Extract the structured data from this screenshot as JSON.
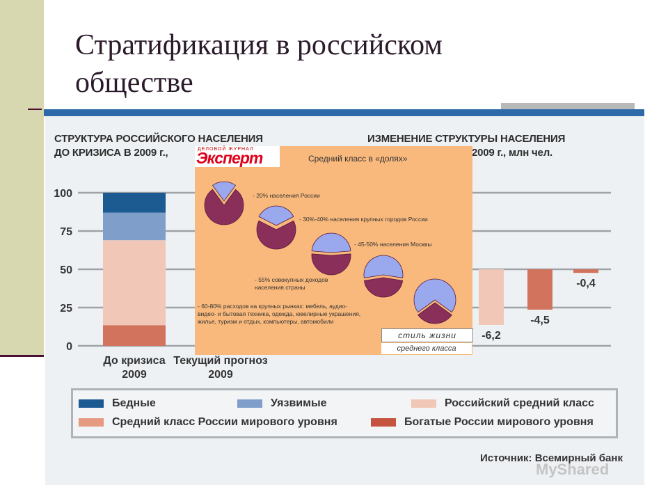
{
  "slide": {
    "title": "Стратификация в российском обществе"
  },
  "chart_left_heading": [
    "СТРУКТУРА РОССИЙСКОГО НАСЕЛЕНИЯ",
    "ДО КРИЗИСА В 2009 г.,"
  ],
  "chart_right_heading": [
    "ИЗМЕНЕНИЕ СТРУКТУРЫ НАСЕЛЕНИЯ",
    "2009 г., млн чел."
  ],
  "chart_data": [
    {
      "type": "bar",
      "stacked": true,
      "title": "СТРУКТУРА РОССИЙСКОГО НАСЕЛЕНИЯ ДО КРИЗИСА В 2009 г.,",
      "categories": [
        "До кризиса\n2009",
        "Текущий прогноз\n2009"
      ],
      "yticks": [
        0,
        25,
        50,
        75,
        100
      ],
      "ylim": [
        0,
        100
      ],
      "grid": true,
      "series": [
        {
          "name": "Богатые России мирового уровня",
          "color": "#d2735d",
          "values": [
            13.5,
            null
          ]
        },
        {
          "name": "Российский средний класс",
          "color": "#f1c8b8",
          "values": [
            55.5,
            null
          ]
        },
        {
          "name": "Уязвимые",
          "color": "#7f9ec9",
          "values": [
            18,
            null
          ]
        },
        {
          "name": "Бедные",
          "color": "#1c5a92",
          "values": [
            13,
            null
          ]
        }
      ]
    },
    {
      "type": "bar",
      "title": "ИЗМЕНЕНИЕ СТРУКТУРЫ НАСЕЛЕНИЯ 2009 г., млн чел.",
      "values": [
        -6.2,
        -4.5,
        -0.4
      ],
      "labels": [
        "-6,2",
        "-4,5",
        "-0,4"
      ],
      "colors": [
        "#f1c8b8",
        "#d2735d",
        "#d2735d"
      ]
    },
    {
      "type": "pie",
      "title": "Средний класс в «долях»",
      "items": [
        {
          "label": "- 20% населения России",
          "value": 20
        },
        {
          "label": "- 30%-40% населения крупных городов России",
          "value": 35
        },
        {
          "label": "- 45-50% населения Москвы",
          "value": 47.5
        },
        {
          "label": "- 55% совокупных доходов населения страны",
          "value": 55
        },
        {
          "label": "- 60-80% расходов на крупных рынках: мебель, аудио-видео- и бытовая техника, одежда, ювелирные украшения, жилье, туризм и отдых, компьютеры, автомобили",
          "value": 70
        }
      ],
      "colors": {
        "main": "#8a2f5a",
        "share": "#9aa8ee"
      }
    }
  ],
  "legend": [
    {
      "label": "Бедные",
      "color": "#1c5a92"
    },
    {
      "label": "Уязвимые",
      "color": "#7f9ec9"
    },
    {
      "label": "Российский средний класс",
      "color": "#f1c8b8"
    },
    {
      "label": "Средний класс России мирового уровня",
      "color": "#e69a82"
    },
    {
      "label": "Богатые России мирового уровня",
      "color": "#c5533f"
    }
  ],
  "source": "Источник: Всемирный банк",
  "overlay": {
    "logo_sub": "ДЕЛОВОЙ ЖУРНАЛ",
    "logo": "Эксперт",
    "title": "Средний класс в «долях»",
    "text_1": "- 20% населения России",
    "text_2": "- 30%-40% населения крупных городов России",
    "text_3": "- 45-50% населения Москвы",
    "text_4a": "- 55% совокупных доходов",
    "text_4b": "населения страны",
    "text_5a": "- 60-80% расходов на крупных рынках: мебель, аудио-",
    "text_5b": "видео- и бытовая техника, одежда, ювелирные украшения,",
    "text_5c": "жилье, туризм и отдых, компьютеры, автомобили",
    "style_line1": "стиль жизни",
    "style_line2": "среднего класса"
  },
  "watermark": "MyShared"
}
